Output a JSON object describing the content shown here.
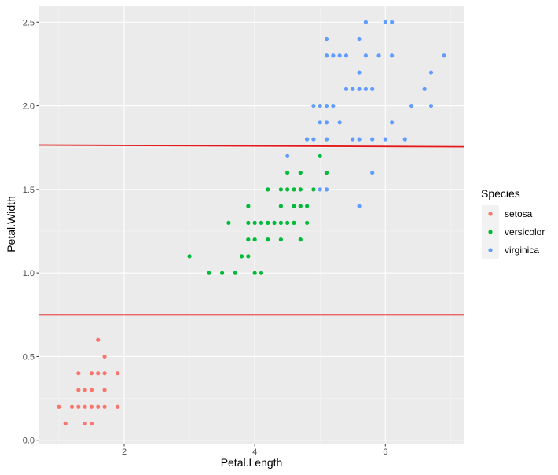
{
  "chart_data": {
    "type": "scatter",
    "xlabel": "Petal.Length",
    "ylabel": "Petal.Width",
    "xlim": [
      0.7,
      7.2
    ],
    "ylim": [
      -0.02,
      2.6
    ],
    "xticks": [
      2,
      4,
      6
    ],
    "xtick_labels": [
      "2",
      "4",
      "6"
    ],
    "yticks": [
      0.0,
      0.5,
      1.0,
      1.5,
      2.0,
      2.5
    ],
    "ytick_labels": [
      "0.0",
      "0.5",
      "1.0",
      "1.5",
      "2.0",
      "2.5"
    ],
    "grid": true,
    "legend": {
      "title": "Species",
      "placement": "right"
    },
    "hlines": [
      {
        "x0": 0.7,
        "x1": 7.2,
        "y0": 0.75,
        "y1": 0.75,
        "color": "#E41A1C"
      },
      {
        "x0": 0.7,
        "x1": 7.2,
        "y0": 1.765,
        "y1": 1.755,
        "color": "#E41A1C"
      }
    ],
    "series": [
      {
        "name": "setosa",
        "color": "#F8766D",
        "points": [
          [
            1.0,
            0.2
          ],
          [
            1.1,
            0.1
          ],
          [
            1.2,
            0.2
          ],
          [
            1.3,
            0.2
          ],
          [
            1.4,
            0.2
          ],
          [
            1.5,
            0.2
          ],
          [
            1.6,
            0.2
          ],
          [
            1.7,
            0.2
          ],
          [
            1.9,
            0.2
          ],
          [
            1.3,
            0.3
          ],
          [
            1.4,
            0.3
          ],
          [
            1.5,
            0.3
          ],
          [
            1.7,
            0.3
          ],
          [
            1.3,
            0.4
          ],
          [
            1.5,
            0.4
          ],
          [
            1.6,
            0.4
          ],
          [
            1.7,
            0.4
          ],
          [
            1.9,
            0.4
          ],
          [
            1.7,
            0.5
          ],
          [
            1.6,
            0.6
          ],
          [
            1.4,
            0.1
          ],
          [
            1.5,
            0.1
          ]
        ]
      },
      {
        "name": "versicolor",
        "color": "#00BA38",
        "points": [
          [
            3.0,
            1.1
          ],
          [
            3.8,
            1.1
          ],
          [
            3.9,
            1.1
          ],
          [
            3.3,
            1.0
          ],
          [
            3.5,
            1.0
          ],
          [
            3.7,
            1.0
          ],
          [
            4.0,
            1.0
          ],
          [
            4.1,
            1.0
          ],
          [
            3.9,
            1.2
          ],
          [
            4.0,
            1.2
          ],
          [
            4.2,
            1.2
          ],
          [
            4.4,
            1.2
          ],
          [
            4.7,
            1.2
          ],
          [
            3.6,
            1.3
          ],
          [
            3.9,
            1.3
          ],
          [
            4.0,
            1.3
          ],
          [
            4.1,
            1.3
          ],
          [
            4.2,
            1.3
          ],
          [
            4.3,
            1.3
          ],
          [
            4.4,
            1.3
          ],
          [
            4.5,
            1.3
          ],
          [
            4.6,
            1.3
          ],
          [
            4.8,
            1.3
          ],
          [
            3.9,
            1.4
          ],
          [
            4.4,
            1.4
          ],
          [
            4.6,
            1.4
          ],
          [
            4.7,
            1.4
          ],
          [
            4.8,
            1.4
          ],
          [
            4.2,
            1.5
          ],
          [
            4.4,
            1.5
          ],
          [
            4.5,
            1.5
          ],
          [
            4.6,
            1.5
          ],
          [
            4.7,
            1.5
          ],
          [
            4.9,
            1.5
          ],
          [
            4.5,
            1.6
          ],
          [
            4.7,
            1.6
          ],
          [
            5.1,
            1.6
          ],
          [
            5.0,
            1.7
          ],
          [
            4.8,
            1.8
          ]
        ]
      },
      {
        "name": "virginica",
        "color": "#619CFF",
        "points": [
          [
            5.7,
            2.5
          ],
          [
            6.0,
            2.5
          ],
          [
            6.1,
            2.5
          ],
          [
            5.1,
            2.4
          ],
          [
            5.6,
            2.4
          ],
          [
            5.1,
            2.3
          ],
          [
            5.2,
            2.3
          ],
          [
            5.3,
            2.3
          ],
          [
            5.4,
            2.3
          ],
          [
            5.7,
            2.3
          ],
          [
            5.9,
            2.3
          ],
          [
            6.1,
            2.3
          ],
          [
            6.9,
            2.3
          ],
          [
            5.6,
            2.2
          ],
          [
            6.7,
            2.2
          ],
          [
            5.7,
            2.1
          ],
          [
            5.4,
            2.1
          ],
          [
            5.5,
            2.1
          ],
          [
            5.6,
            2.1
          ],
          [
            5.8,
            2.1
          ],
          [
            6.6,
            2.1
          ],
          [
            4.9,
            2.0
          ],
          [
            5.0,
            2.0
          ],
          [
            5.1,
            2.0
          ],
          [
            5.2,
            2.0
          ],
          [
            6.4,
            2.0
          ],
          [
            6.7,
            2.0
          ],
          [
            5.0,
            1.9
          ],
          [
            5.1,
            1.9
          ],
          [
            5.3,
            1.9
          ],
          [
            6.1,
            1.9
          ],
          [
            4.8,
            1.8
          ],
          [
            4.9,
            1.8
          ],
          [
            5.1,
            1.8
          ],
          [
            5.5,
            1.8
          ],
          [
            5.6,
            1.8
          ],
          [
            5.8,
            1.8
          ],
          [
            6.0,
            1.8
          ],
          [
            6.3,
            1.8
          ],
          [
            4.5,
            1.7
          ],
          [
            5.8,
            1.6
          ],
          [
            5.0,
            1.5
          ],
          [
            5.1,
            1.5
          ],
          [
            5.6,
            1.4
          ]
        ]
      }
    ]
  }
}
